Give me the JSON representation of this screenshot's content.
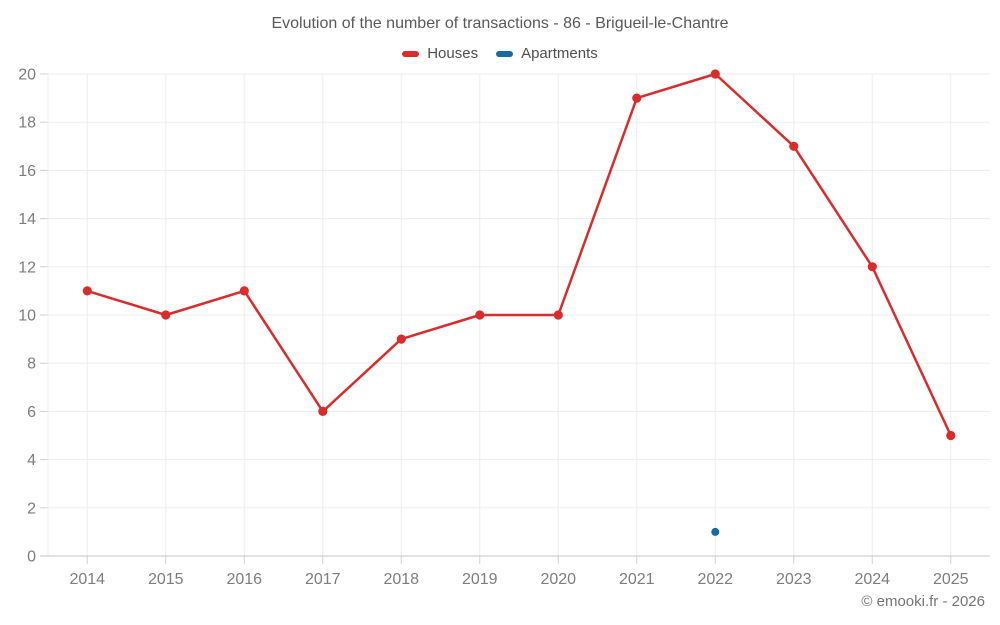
{
  "title": "Evolution of the number of transactions - 86 - Brigueil-le-Chantre",
  "legend": [
    {
      "label": "Houses",
      "color": "#d92c2c"
    },
    {
      "label": "Apartments",
      "color": "#166ca0"
    }
  ],
  "footer": {
    "copyright": "© emooki.fr - 2026"
  },
  "colors": {
    "houses": "#d92c2c",
    "apartments": "#166ca0",
    "gridline": "#ededed",
    "axis_line": "#c6c6c6",
    "tick": "#d0d0d0",
    "axis_label": "#7d7d7d"
  },
  "chart_data": {
    "type": "line",
    "title": "Evolution of the number of transactions - 86 - Brigueil-le-Chantre",
    "categories": [
      "2014",
      "2015",
      "2016",
      "2017",
      "2018",
      "2019",
      "2020",
      "2021",
      "2022",
      "2023",
      "2024",
      "2025"
    ],
    "series": [
      {
        "name": "Houses",
        "color": "#d92c2c",
        "values": [
          11,
          10,
          11,
          6,
          9,
          10,
          10,
          19,
          20,
          17,
          12,
          5
        ]
      },
      {
        "name": "Apartments",
        "color": "#166ca0",
        "values": [
          null,
          null,
          null,
          null,
          null,
          null,
          null,
          null,
          1,
          null,
          null,
          null
        ]
      }
    ],
    "xlabel": "",
    "ylabel": "",
    "ylim": [
      0,
      20
    ],
    "ytick_step": 2,
    "grid": true,
    "legend_position": "top"
  }
}
